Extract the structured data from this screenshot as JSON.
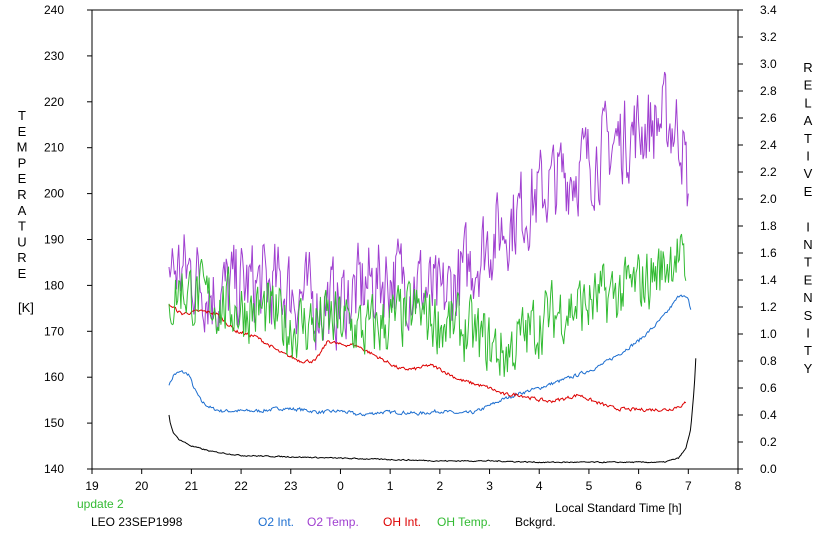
{
  "chart_data": {
    "type": "line",
    "xlabel": "Local Standard Time [h]",
    "ylabel_left": "TEMPERATURE",
    "ylabel_left_unit": "[K]",
    "ylabel_right": "RELATIVE INTENSITY",
    "x_ticks": [
      "19",
      "20",
      "21",
      "22",
      "23",
      "0",
      "1",
      "2",
      "3",
      "4",
      "5",
      "6",
      "7",
      "8"
    ],
    "xlim": [
      19,
      32
    ],
    "y_left_ticks": [
      "140",
      "150",
      "160",
      "170",
      "180",
      "190",
      "200",
      "210",
      "220",
      "230",
      "240"
    ],
    "ylim_left": [
      140,
      240
    ],
    "y_right_ticks": [
      "0.0",
      "0.2",
      "0.4",
      "0.6",
      "0.8",
      "1.0",
      "1.2",
      "1.4",
      "1.6",
      "1.8",
      "2.0",
      "2.2",
      "2.4",
      "2.6",
      "2.8",
      "3.0",
      "3.2",
      "3.4"
    ],
    "ylim_right": [
      0,
      3.4
    ],
    "grid": false,
    "legend_position": "bottom",
    "status_text": "update 2",
    "station_text": "LEO 23SEP1998",
    "series": [
      {
        "name": "O2 Int.",
        "axis": "right",
        "color": "#1e6fd0",
        "noise": 0.012,
        "points": [
          [
            20.55,
            0.62
          ],
          [
            20.65,
            0.7
          ],
          [
            20.8,
            0.72
          ],
          [
            20.95,
            0.7
          ],
          [
            21.05,
            0.6
          ],
          [
            21.2,
            0.5
          ],
          [
            21.4,
            0.45
          ],
          [
            21.6,
            0.43
          ],
          [
            22.0,
            0.43
          ],
          [
            22.4,
            0.43
          ],
          [
            22.8,
            0.45
          ],
          [
            23.2,
            0.44
          ],
          [
            23.6,
            0.42
          ],
          [
            24.0,
            0.43
          ],
          [
            24.4,
            0.4
          ],
          [
            24.8,
            0.42
          ],
          [
            25.2,
            0.42
          ],
          [
            25.6,
            0.41
          ],
          [
            26.0,
            0.43
          ],
          [
            26.4,
            0.41
          ],
          [
            26.7,
            0.42
          ],
          [
            27.0,
            0.47
          ],
          [
            27.3,
            0.52
          ],
          [
            27.6,
            0.56
          ],
          [
            28.0,
            0.6
          ],
          [
            28.4,
            0.65
          ],
          [
            28.8,
            0.7
          ],
          [
            29.2,
            0.76
          ],
          [
            29.6,
            0.85
          ],
          [
            30.0,
            0.95
          ],
          [
            30.3,
            1.05
          ],
          [
            30.55,
            1.15
          ],
          [
            30.75,
            1.25
          ],
          [
            30.85,
            1.3
          ],
          [
            31.0,
            1.25
          ],
          [
            31.05,
            1.18
          ]
        ]
      },
      {
        "name": "O2 Temp.",
        "axis": "left",
        "color": "#a040d0",
        "noise": 8.5,
        "points": [
          [
            20.55,
            184
          ],
          [
            21.0,
            183
          ],
          [
            21.5,
            178
          ],
          [
            22.0,
            180
          ],
          [
            22.5,
            180
          ],
          [
            23.0,
            179
          ],
          [
            23.5,
            176
          ],
          [
            24.0,
            176
          ],
          [
            24.5,
            180
          ],
          [
            25.0,
            182
          ],
          [
            25.5,
            181
          ],
          [
            26.0,
            176
          ],
          [
            26.5,
            183
          ],
          [
            27.0,
            190
          ],
          [
            27.5,
            195
          ],
          [
            28.0,
            200
          ],
          [
            28.5,
            204
          ],
          [
            29.0,
            207
          ],
          [
            29.5,
            211
          ],
          [
            30.0,
            214
          ],
          [
            30.5,
            216
          ],
          [
            30.85,
            214
          ],
          [
            31.0,
            200
          ]
        ]
      },
      {
        "name": "OH Int.",
        "axis": "right",
        "color": "#dd0000",
        "noise": 0.012,
        "points": [
          [
            20.55,
            1.22
          ],
          [
            20.8,
            1.15
          ],
          [
            21.2,
            1.17
          ],
          [
            21.5,
            1.15
          ],
          [
            21.9,
            1.02
          ],
          [
            22.3,
            0.98
          ],
          [
            22.8,
            0.86
          ],
          [
            23.2,
            0.8
          ],
          [
            23.5,
            0.8
          ],
          [
            23.75,
            0.95
          ],
          [
            24.0,
            0.92
          ],
          [
            24.3,
            0.92
          ],
          [
            24.7,
            0.84
          ],
          [
            25.0,
            0.78
          ],
          [
            25.2,
            0.74
          ],
          [
            25.5,
            0.74
          ],
          [
            25.8,
            0.77
          ],
          [
            26.0,
            0.74
          ],
          [
            26.4,
            0.66
          ],
          [
            26.8,
            0.62
          ],
          [
            27.0,
            0.6
          ],
          [
            27.3,
            0.55
          ],
          [
            27.6,
            0.55
          ],
          [
            27.9,
            0.52
          ],
          [
            28.2,
            0.5
          ],
          [
            28.5,
            0.52
          ],
          [
            28.8,
            0.55
          ],
          [
            29.1,
            0.5
          ],
          [
            29.5,
            0.45
          ],
          [
            29.8,
            0.44
          ],
          [
            30.0,
            0.44
          ],
          [
            30.3,
            0.44
          ],
          [
            30.6,
            0.44
          ],
          [
            30.85,
            0.47
          ],
          [
            30.95,
            0.49
          ]
        ]
      },
      {
        "name": "OH Temp.",
        "axis": "left",
        "color": "#33bb33",
        "noise": 6.5,
        "points": [
          [
            20.55,
            176
          ],
          [
            20.8,
            180
          ],
          [
            21.0,
            178
          ],
          [
            21.5,
            176
          ],
          [
            22.0,
            175
          ],
          [
            22.5,
            174
          ],
          [
            23.0,
            171
          ],
          [
            23.5,
            172
          ],
          [
            24.0,
            172
          ],
          [
            24.5,
            170
          ],
          [
            25.0,
            172
          ],
          [
            25.5,
            174
          ],
          [
            26.0,
            172
          ],
          [
            26.5,
            170
          ],
          [
            27.0,
            167
          ],
          [
            27.3,
            165
          ],
          [
            27.6,
            168
          ],
          [
            28.0,
            172
          ],
          [
            28.5,
            175
          ],
          [
            29.0,
            176
          ],
          [
            29.5,
            178
          ],
          [
            30.0,
            180
          ],
          [
            30.5,
            184
          ],
          [
            30.75,
            188
          ],
          [
            30.95,
            181
          ]
        ]
      },
      {
        "name": "Bckgrd.",
        "axis": "right",
        "color": "#000000",
        "noise": 0.004,
        "points": [
          [
            20.55,
            0.4
          ],
          [
            20.58,
            0.33
          ],
          [
            20.65,
            0.26
          ],
          [
            20.75,
            0.22
          ],
          [
            21.0,
            0.17
          ],
          [
            21.4,
            0.13
          ],
          [
            22.0,
            0.1
          ],
          [
            23.0,
            0.09
          ],
          [
            24.0,
            0.08
          ],
          [
            25.0,
            0.07
          ],
          [
            26.0,
            0.06
          ],
          [
            27.0,
            0.06
          ],
          [
            28.0,
            0.05
          ],
          [
            29.0,
            0.05
          ],
          [
            30.0,
            0.05
          ],
          [
            30.5,
            0.05
          ],
          [
            30.8,
            0.08
          ],
          [
            30.95,
            0.15
          ],
          [
            31.05,
            0.3
          ],
          [
            31.12,
            0.6
          ],
          [
            31.15,
            0.82
          ]
        ]
      }
    ]
  }
}
